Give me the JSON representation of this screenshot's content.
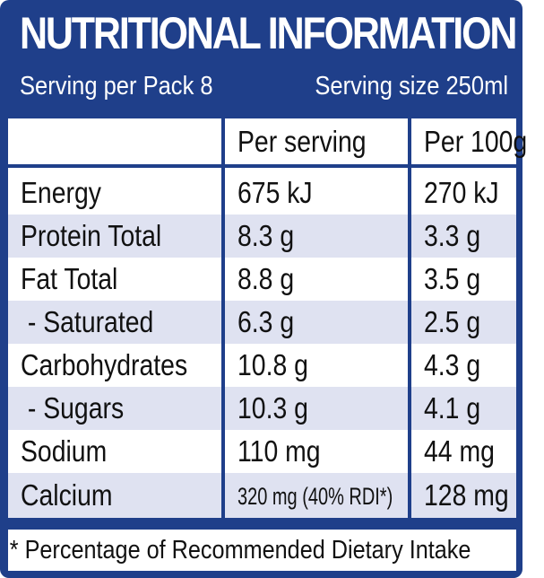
{
  "title": "NUTRITIONAL INFORMATION",
  "serving": {
    "per_pack": "Serving per Pack 8",
    "size": "Serving size 250ml"
  },
  "columns": {
    "c1": "",
    "c2": "Per serving",
    "c3": "Per 100g"
  },
  "rows": [
    {
      "name": "Energy",
      "per_serving": "675 kJ",
      "per_100g": "270 kJ"
    },
    {
      "name": "Protein Total",
      "per_serving": "8.3 g",
      "per_100g": "3.3 g"
    },
    {
      "name": "Fat Total",
      "per_serving": "8.8 g",
      "per_100g": "3.5 g"
    },
    {
      "name": " - Saturated",
      "per_serving": "6.3 g",
      "per_100g": "2.5 g"
    },
    {
      "name": "Carbohydrates",
      "per_serving": "10.8 g",
      "per_100g": "4.3 g"
    },
    {
      "name": " - Sugars",
      "per_serving": "10.3 g",
      "per_100g": "4.1 g"
    },
    {
      "name": "Sodium",
      "per_serving": "110 mg",
      "per_100g": "44 mg"
    },
    {
      "name": "Calcium",
      "per_serving": "320 mg (40% RDI*)",
      "per_100g": "128 mg"
    }
  ],
  "footnote": "* Percentage of Recommended Dietary Intake",
  "colors": {
    "brand_blue": "#1f3f8a",
    "row_shade": "#dfe2f1"
  }
}
